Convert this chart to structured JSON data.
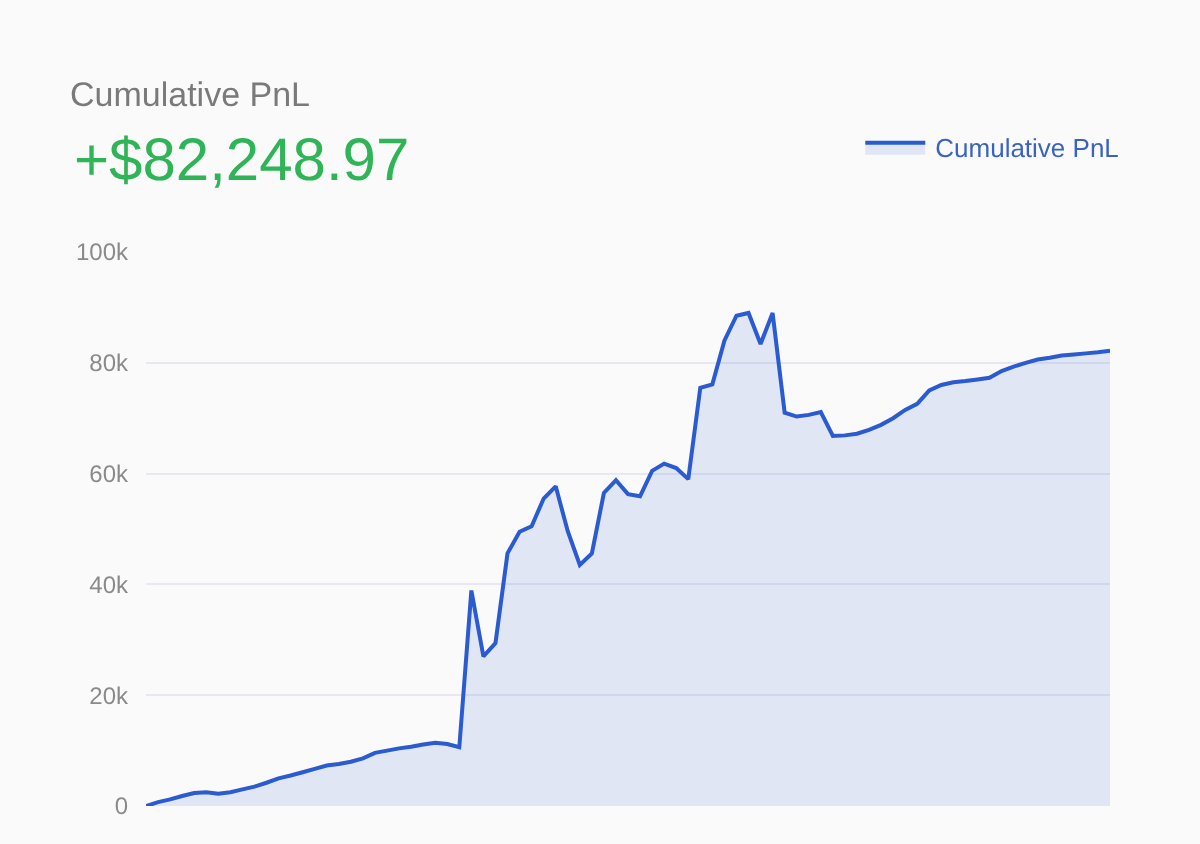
{
  "chart_data": {
    "type": "area",
    "title": "Cumulative PnL",
    "subtitle": "+$82,248.97",
    "categories": [
      null,
      null,
      null,
      null,
      null,
      null,
      null,
      null,
      null,
      null,
      null,
      null,
      null,
      null,
      null,
      null,
      null,
      null,
      null,
      null,
      null,
      null,
      null,
      null,
      null,
      null,
      null,
      null,
      null,
      null,
      null,
      null,
      null,
      null,
      null,
      null,
      null,
      null,
      null,
      null,
      null,
      null,
      null,
      null,
      null,
      null,
      null,
      null,
      null,
      null,
      null,
      null,
      null,
      null,
      null,
      null,
      null,
      null,
      null,
      null,
      null,
      null,
      null,
      null,
      null,
      null,
      null,
      null,
      null,
      null,
      null,
      null,
      null,
      null,
      null,
      null,
      null,
      null,
      null,
      null,
      null
    ],
    "series": [
      {
        "name": "Cumulative PnL",
        "color": "#2a5bd0",
        "values": [
          0,
          700,
          1200,
          1800,
          2350,
          2500,
          2200,
          2500,
          3000,
          3500,
          4200,
          5000,
          5500,
          6100,
          6700,
          7300,
          7600,
          8000,
          8600,
          9600,
          10000,
          10400,
          10700,
          11100,
          11400,
          11200,
          10600,
          38900,
          27000,
          29400,
          45600,
          49500,
          50500,
          55500,
          57700,
          49600,
          43500,
          45600,
          56500,
          58800,
          56300,
          55900,
          60500,
          61800,
          61000,
          59000,
          75500,
          76100,
          84000,
          88500,
          89000,
          83400,
          89000,
          71000,
          70300,
          70600,
          71100,
          66800,
          66900,
          67200,
          67900,
          68800,
          70000,
          71500,
          72600,
          75000,
          76000,
          76500,
          76700,
          77000,
          77300,
          78500,
          79300,
          80000,
          80600,
          80900,
          81300,
          81500,
          81700,
          81900,
          82200
        ]
      }
    ],
    "ylim": [
      0,
      100000
    ],
    "yticks": [
      {
        "value": 0,
        "label": "0"
      },
      {
        "value": 20000,
        "label": "20k"
      },
      {
        "value": 40000,
        "label": "40k"
      },
      {
        "value": 60000,
        "label": "60k"
      },
      {
        "value": 80000,
        "label": "80k"
      },
      {
        "value": 100000,
        "label": "100k"
      }
    ],
    "tick_labels": "y",
    "grid": "y",
    "legend": "top right",
    "marker": "none",
    "line_style": "solid"
  }
}
